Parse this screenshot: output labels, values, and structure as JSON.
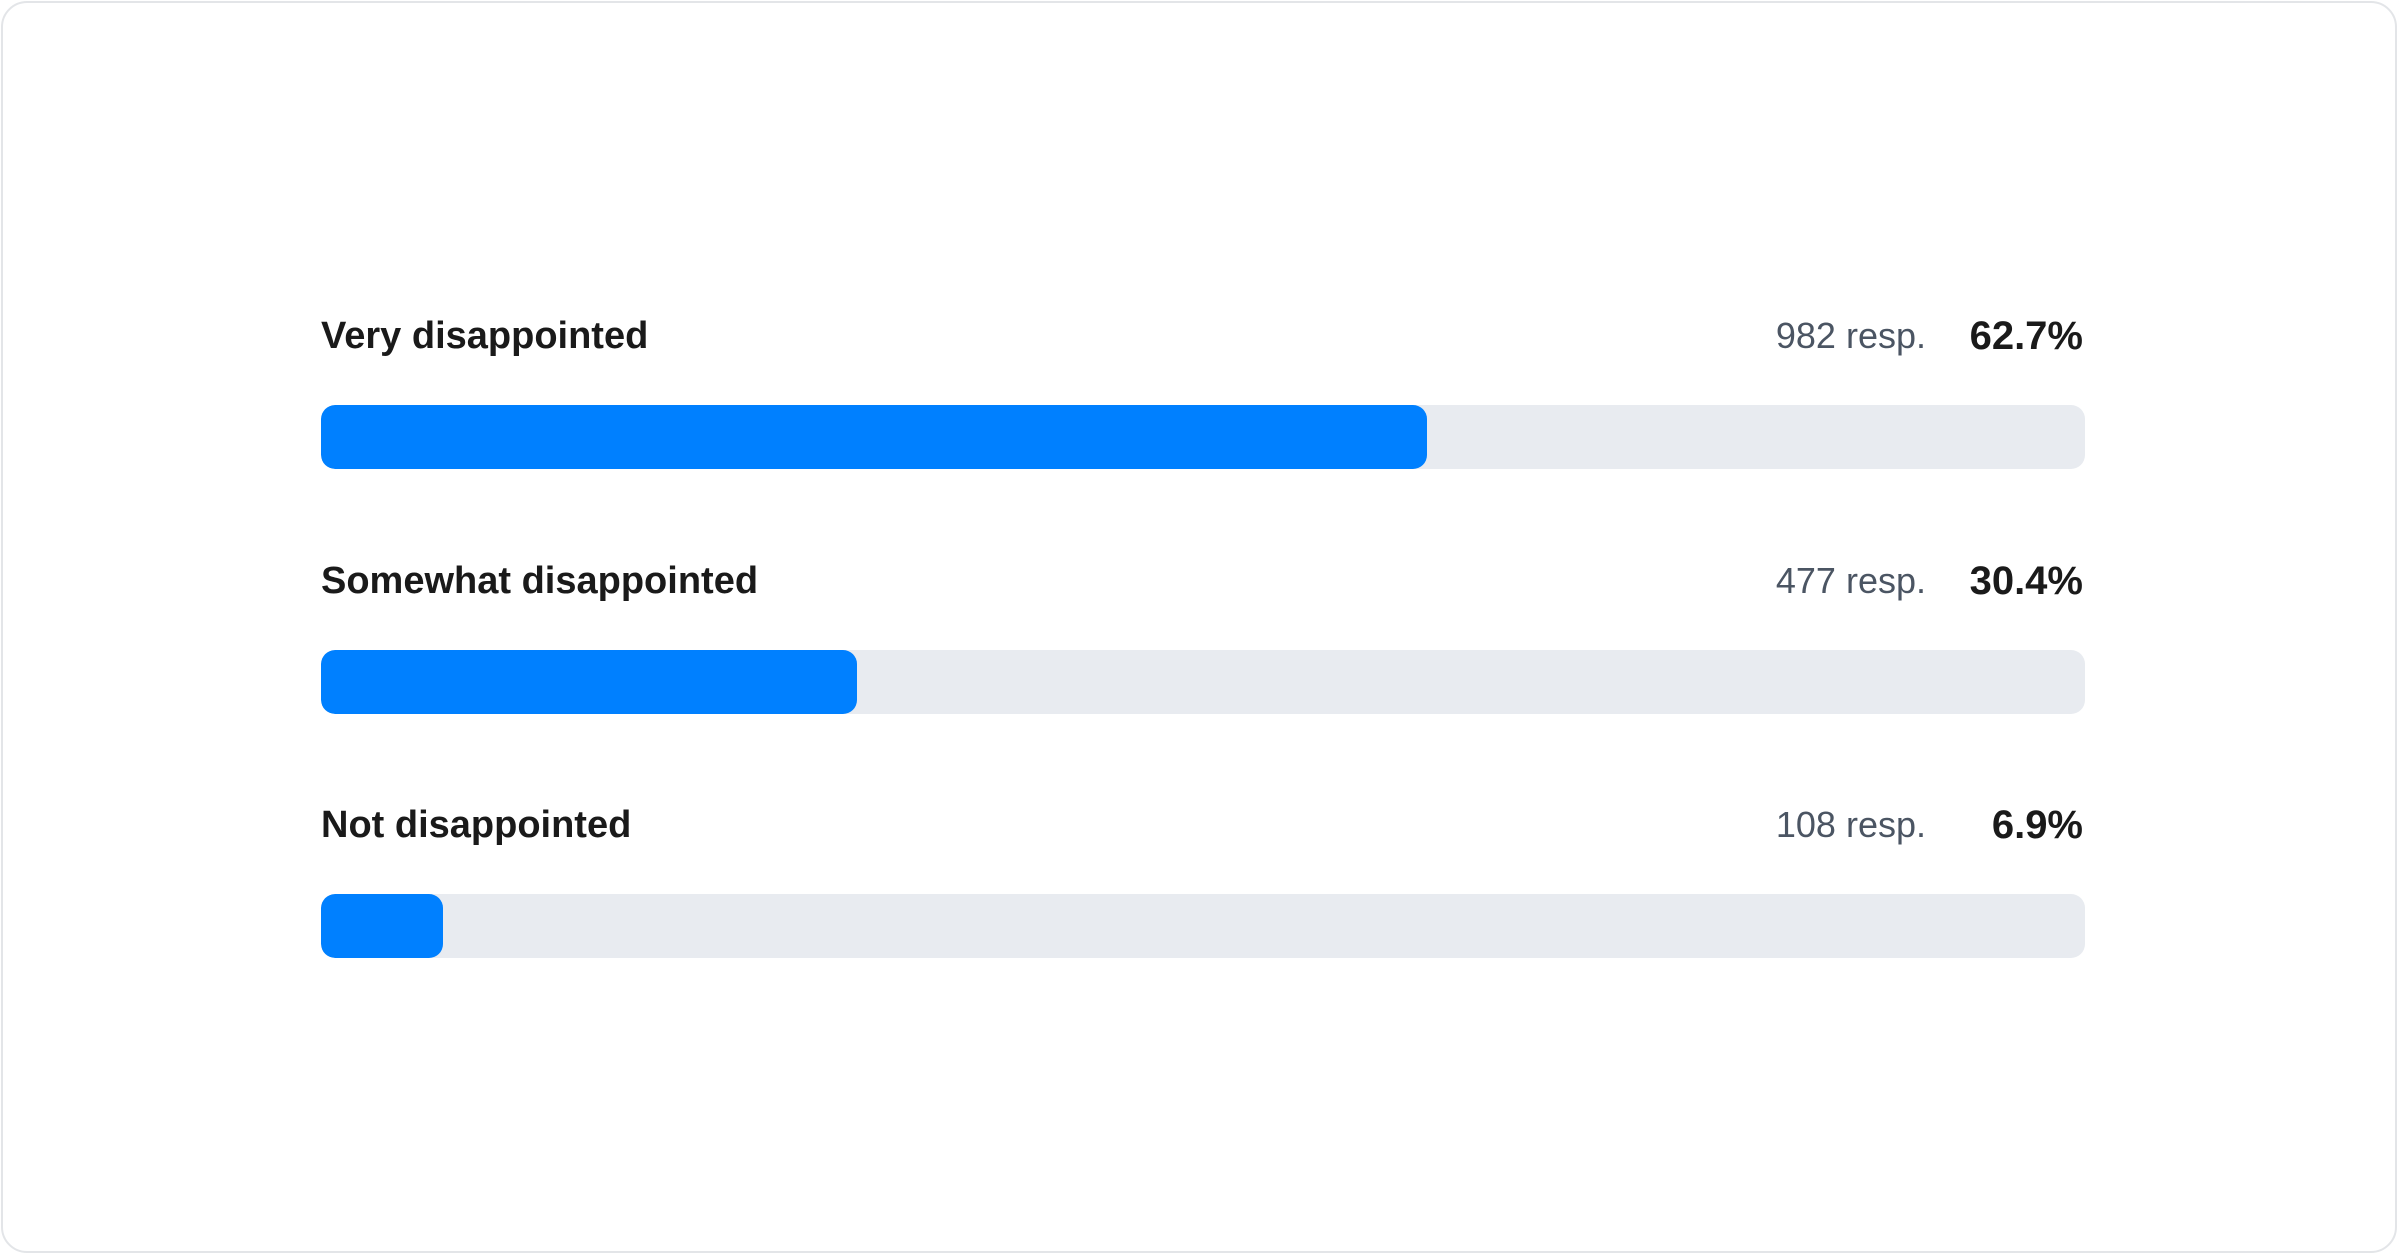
{
  "chart_data": {
    "type": "bar",
    "orientation": "horizontal",
    "categories": [
      "Very disappointed",
      "Somewhat disappointed",
      "Not disappointed"
    ],
    "responses": [
      "982 resp.",
      "477 resp.",
      "108 resp."
    ],
    "percent_labels": [
      "62.7%",
      "30.4%",
      "6.9%"
    ],
    "values": [
      62.7,
      30.4,
      6.9
    ],
    "xlim": [
      0,
      100
    ],
    "bar_color": "#0080ff",
    "track_color": "#e8ebf0"
  }
}
